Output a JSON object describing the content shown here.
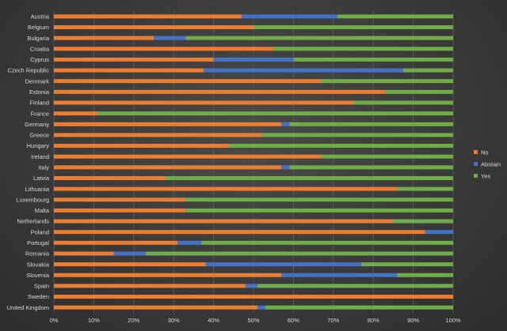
{
  "chart_data": {
    "type": "bar",
    "orientation": "horizontal",
    "stacked": "percent",
    "title": "",
    "xlabel": "",
    "ylabel": "",
    "xlim": [
      0,
      100
    ],
    "x_ticks": [
      "0%",
      "10%",
      "20%",
      "30%",
      "40%",
      "50%",
      "60%",
      "70%",
      "80%",
      "90%",
      "100%"
    ],
    "grid": true,
    "legend_position": "right",
    "categories": [
      "Austria",
      "Belgium",
      "Bulgaria",
      "Croatia",
      "Cyprus",
      "Czech Republic",
      "Denmark",
      "Estonia",
      "Finland",
      "France",
      "Germany",
      "Greece",
      "Hungary",
      "Ireland",
      "Italy",
      "Latvia",
      "Lithuania",
      "Luxembourg",
      "Malta",
      "Netherlands",
      "Poland",
      "Portugal",
      "Romania",
      "Slovakia",
      "Slovenia",
      "Spain",
      "Sweden",
      "United Kingdom"
    ],
    "series": [
      {
        "name": "No",
        "color": "#ed7d31",
        "values": [
          47,
          50,
          25,
          55,
          40,
          37.5,
          67,
          83,
          75,
          11,
          57,
          52,
          44,
          67,
          57,
          28,
          86,
          33,
          33,
          85,
          93,
          31,
          15,
          38,
          57,
          48,
          100,
          51
        ]
      },
      {
        "name": "Abstain",
        "color": "#4472c4",
        "values": [
          24,
          0,
          8,
          0,
          20,
          50,
          0,
          0,
          0,
          0,
          2,
          0,
          0,
          0,
          2,
          0,
          0,
          0,
          0,
          0,
          7,
          6,
          8,
          39,
          29,
          3,
          0,
          2
        ]
      },
      {
        "name": "Yes",
        "color": "#70ad47",
        "values": [
          29,
          50,
          67,
          45,
          40,
          12.5,
          33,
          17,
          25,
          89,
          41,
          48,
          56,
          33,
          41,
          72,
          14,
          67,
          67,
          15,
          0,
          63,
          77,
          23,
          14,
          49,
          0,
          47
        ]
      }
    ]
  }
}
